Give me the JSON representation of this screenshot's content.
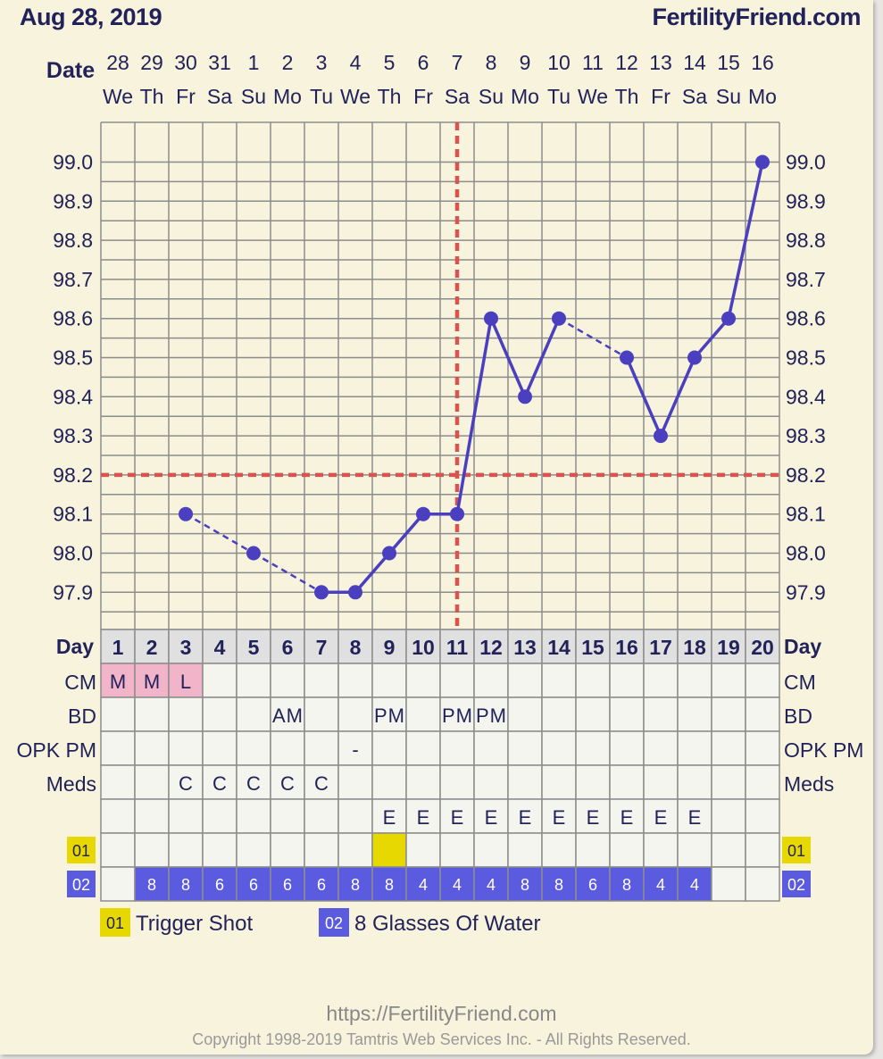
{
  "header": {
    "date": "Aug 28, 2019",
    "site": "FertilityFriend.com"
  },
  "footer": {
    "url": "https://FertilityFriend.com",
    "copyright": "Copyright 1998-2019 Tamtris Web Services Inc. - All Rights Reserved."
  },
  "labels": {
    "date": "Date",
    "day": "Day",
    "cm": "CM",
    "bd": "BD",
    "opk": "OPK PM",
    "meds": "Meds"
  },
  "colors": {
    "line": "#4a3fbf",
    "coverline": "#d9534f",
    "grid": "#8c8c8c",
    "cm_fill": "#f2b4c8",
    "trigger": "#e6d800",
    "water": "#5b5be0",
    "text": "#22225a",
    "table_bg": "#f5f5ef",
    "day_bg": "#e0e0e0"
  },
  "chart_data": {
    "type": "line",
    "ylim": [
      97.8,
      99.1
    ],
    "y_ticks": [
      "99.0",
      "98.9",
      "98.8",
      "98.7",
      "98.6",
      "98.5",
      "98.4",
      "98.3",
      "98.2",
      "98.1",
      "98.0",
      "97.9"
    ],
    "dates": [
      "28",
      "29",
      "30",
      "31",
      "1",
      "2",
      "3",
      "4",
      "5",
      "6",
      "7",
      "8",
      "9",
      "10",
      "11",
      "12",
      "13",
      "14",
      "15",
      "16"
    ],
    "weekdays": [
      "We",
      "Th",
      "Fr",
      "Sa",
      "Su",
      "Mo",
      "Tu",
      "We",
      "Th",
      "Fr",
      "Sa",
      "Su",
      "Mo",
      "Tu",
      "We",
      "Th",
      "Fr",
      "Sa",
      "Su",
      "Mo"
    ],
    "days": [
      "1",
      "2",
      "3",
      "4",
      "5",
      "6",
      "7",
      "8",
      "9",
      "10",
      "11",
      "12",
      "13",
      "14",
      "15",
      "16",
      "17",
      "18",
      "19",
      "20"
    ],
    "temps": [
      null,
      null,
      98.1,
      null,
      98.0,
      null,
      97.9,
      97.9,
      98.0,
      98.1,
      98.1,
      98.6,
      98.4,
      98.6,
      null,
      98.5,
      98.3,
      98.5,
      98.6,
      99.0
    ],
    "coverline": 98.2,
    "ovulation_day": 11,
    "rows": {
      "cm": [
        "M",
        "M",
        "L",
        "",
        "",
        "",
        "",
        "",
        "",
        "",
        "",
        "",
        "",
        "",
        "",
        "",
        "",
        "",
        "",
        ""
      ],
      "bd": [
        "",
        "",
        "",
        "",
        "",
        "AM",
        "",
        "",
        "PM",
        "",
        "PM",
        "PM",
        "",
        "",
        "",
        "",
        "",
        "",
        "",
        ""
      ],
      "opk": [
        "",
        "",
        "",
        "",
        "",
        "",
        "",
        "-",
        "",
        "",
        "",
        "",
        "",
        "",
        "",
        "",
        "",
        "",
        "",
        ""
      ],
      "meds": [
        "",
        "",
        "C",
        "C",
        "C",
        "C",
        "C",
        "",
        "",
        "",
        "",
        "",
        "",
        "",
        "",
        "",
        "",
        "",
        "",
        ""
      ],
      "extra": [
        "",
        "",
        "",
        "",
        "",
        "",
        "",
        "",
        "E",
        "E",
        "E",
        "E",
        "E",
        "E",
        "E",
        "E",
        "E",
        "E",
        "",
        ""
      ],
      "trigger": [
        false,
        false,
        false,
        false,
        false,
        false,
        false,
        false,
        true,
        false,
        false,
        false,
        false,
        false,
        false,
        false,
        false,
        false,
        false,
        false
      ],
      "water": [
        "",
        "8",
        "8",
        "6",
        "6",
        "6",
        "6",
        "8",
        "8",
        "4",
        "4",
        "4",
        "8",
        "8",
        "6",
        "8",
        "4",
        "4",
        "",
        ""
      ]
    },
    "custom_codes": [
      {
        "code": "01",
        "label": "Trigger Shot",
        "color": "#e6d800"
      },
      {
        "code": "02",
        "label": "8 Glasses Of Water",
        "color": "#5b5be0"
      }
    ]
  }
}
